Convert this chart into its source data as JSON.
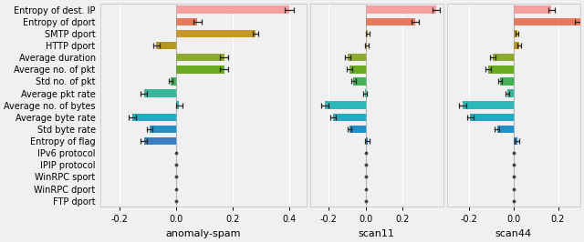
{
  "features": [
    "Entropy of dest. IP",
    "Entropy of dport",
    "SMTP dport",
    "HTTP dport",
    "Average duration",
    "Average no. of pkt",
    "Std no. of pkt",
    "Average pkt rate",
    "Average no. of bytes",
    "Average byte rate",
    "Std byte rate",
    "Entropy of flag",
    "IPv6 protocol",
    "IPIP protocol",
    "WinRPC sport",
    "WinRPC dport",
    "FTP dport"
  ],
  "colors": [
    "#f5a0a0",
    "#e8795a",
    "#c9962a",
    "#b8971e",
    "#8faa30",
    "#6aab22",
    "#44b056",
    "#36b89c",
    "#2bbaba",
    "#26a8c4",
    "#2290c8",
    "#3a7fc4",
    "#555555",
    "#555555",
    "#555555",
    "#555555",
    "#555555"
  ],
  "subplots": [
    {
      "title": "anomaly-spam",
      "values": [
        0.4,
        0.075,
        0.28,
        -0.07,
        0.17,
        0.17,
        -0.02,
        -0.115,
        0.01,
        -0.155,
        -0.095,
        -0.115,
        0.0,
        0.0,
        0.0,
        0.0,
        0.0
      ],
      "errors": [
        0.015,
        0.015,
        0.01,
        0.012,
        0.015,
        0.015,
        0.007,
        0.012,
        0.012,
        0.012,
        0.01,
        0.012,
        0.0,
        0.0,
        0.0,
        0.0,
        0.0
      ],
      "xlim": [
        -0.27,
        0.46
      ],
      "xticks": [
        -0.2,
        0.0,
        0.2,
        0.4
      ]
    },
    {
      "title": "scan11",
      "values": [
        0.38,
        0.27,
        0.01,
        0.005,
        -0.095,
        -0.085,
        -0.065,
        -0.005,
        -0.22,
        -0.175,
        -0.085,
        0.01,
        0.0,
        0.0,
        0.0,
        0.0,
        0.0
      ],
      "errors": [
        0.02,
        0.02,
        0.01,
        0.01,
        0.015,
        0.015,
        0.012,
        0.01,
        0.02,
        0.015,
        0.01,
        0.012,
        0.0,
        0.0,
        0.0,
        0.0,
        0.0
      ],
      "xlim": [
        -0.3,
        0.42
      ],
      "xticks": [
        -0.2,
        0.0,
        0.2
      ]
    },
    {
      "title": "scan44",
      "values": [
        0.17,
        0.3,
        0.015,
        0.025,
        -0.095,
        -0.115,
        -0.06,
        -0.03,
        -0.23,
        -0.195,
        -0.075,
        0.015,
        0.0,
        0.0,
        0.0,
        0.0,
        0.0
      ],
      "errors": [
        0.015,
        0.022,
        0.008,
        0.008,
        0.012,
        0.012,
        0.008,
        0.008,
        0.018,
        0.013,
        0.009,
        0.009,
        0.0,
        0.0,
        0.0,
        0.0,
        0.0
      ],
      "xlim": [
        -0.3,
        0.3
      ],
      "xticks": [
        -0.2,
        0.0,
        0.2
      ]
    }
  ],
  "bar_height": 0.65,
  "dot_indices": [
    12,
    13,
    14,
    15,
    16
  ],
  "background_color": "#f0f0f0",
  "grid_color": "#ffffff"
}
